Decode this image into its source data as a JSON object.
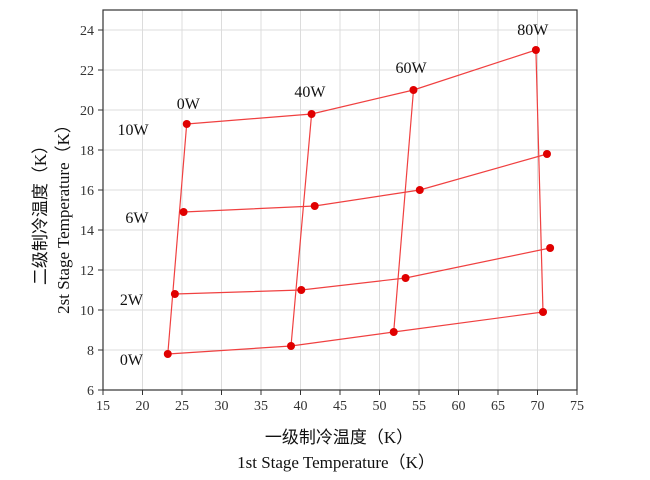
{
  "chart_data": {
    "type": "line",
    "xlabel": [
      "一级制冷温度（K）",
      "1st Stage Temperature（K）"
    ],
    "ylabel": [
      "二级制冷温度（K）",
      "2st Stage Temperature（K）"
    ],
    "xlim": [
      15,
      75
    ],
    "ylim": [
      6,
      25
    ],
    "x_ticks": [
      15,
      20,
      25,
      30,
      35,
      40,
      45,
      50,
      55,
      60,
      65,
      70,
      75
    ],
    "y_ticks": [
      6,
      8,
      10,
      12,
      14,
      16,
      18,
      20,
      22,
      24
    ],
    "grid": true,
    "line_color": "#f04040",
    "marker_color": "#e00000",
    "series": [
      {
        "name": "0W",
        "points": [
          [
            23.2,
            7.8
          ],
          [
            25.6,
            19.3
          ]
        ]
      },
      {
        "name": "40W",
        "points": [
          [
            38.8,
            8.2
          ],
          [
            41.4,
            19.8
          ]
        ]
      },
      {
        "name": "60W",
        "points": [
          [
            51.8,
            8.9
          ],
          [
            54.3,
            21.0
          ]
        ]
      },
      {
        "name": "80W",
        "points": [
          [
            70.7,
            9.9
          ],
          [
            69.8,
            23.0
          ]
        ]
      },
      {
        "name": "0W",
        "points": [
          [
            23.2,
            7.8
          ],
          [
            38.8,
            8.2
          ],
          [
            51.8,
            8.9
          ],
          [
            70.7,
            9.9
          ]
        ]
      },
      {
        "name": "2W",
        "points": [
          [
            24.1,
            10.8
          ],
          [
            40.1,
            11.0
          ],
          [
            53.3,
            11.6
          ],
          [
            71.6,
            13.1
          ]
        ]
      },
      {
        "name": "6W",
        "points": [
          [
            25.2,
            14.9
          ],
          [
            41.8,
            15.2
          ],
          [
            55.1,
            16.0
          ],
          [
            71.2,
            17.8
          ]
        ]
      },
      {
        "name": "10W",
        "points": [
          [
            25.6,
            19.3
          ],
          [
            41.4,
            19.8
          ],
          [
            54.3,
            21.0
          ],
          [
            69.8,
            23.0
          ]
        ]
      }
    ],
    "annotations": [
      {
        "text": "0W",
        "x": 25.8,
        "y": 20.3
      },
      {
        "text": "40W",
        "x": 41.2,
        "y": 20.9
      },
      {
        "text": "60W",
        "x": 54.0,
        "y": 22.1
      },
      {
        "text": "80W",
        "x": 69.4,
        "y": 24.0
      },
      {
        "text": "10W",
        "x": 18.8,
        "y": 19.0
      },
      {
        "text": "6W",
        "x": 19.3,
        "y": 14.6
      },
      {
        "text": "2W",
        "x": 18.6,
        "y": 10.5
      },
      {
        "text": "0W",
        "x": 18.6,
        "y": 7.5
      }
    ]
  }
}
